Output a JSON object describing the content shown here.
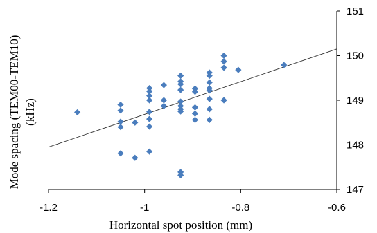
{
  "chart_data": {
    "type": "scatter",
    "xlabel": "Horizontal spot position (mm)",
    "ylabel_line1": "Mode spacing (TEM00-TEM10)",
    "ylabel_line2": "(kHz)",
    "xlim": [
      -1.2,
      -0.6
    ],
    "ylim": [
      147,
      151
    ],
    "x_ticks": [
      -1.2,
      -1,
      -0.8,
      -0.6
    ],
    "x_tick_labels": [
      "-1.2",
      "-1",
      "-0.8",
      "-0.6"
    ],
    "y_ticks": [
      147,
      148,
      149,
      150,
      151
    ],
    "y_tick_labels": [
      "147",
      "148",
      "149",
      "150",
      "151"
    ],
    "y_axis_side": "right",
    "grid": false,
    "marker_color": "#4a7dbd",
    "trendline": {
      "x": [
        -1.2,
        -0.6
      ],
      "y": [
        147.95,
        150.15
      ]
    },
    "points": [
      {
        "x": -1.14,
        "y": 148.73
      },
      {
        "x": -1.05,
        "y": 148.9
      },
      {
        "x": -1.05,
        "y": 148.77
      },
      {
        "x": -1.05,
        "y": 148.52
      },
      {
        "x": -1.05,
        "y": 148.4
      },
      {
        "x": -1.05,
        "y": 147.81
      },
      {
        "x": -1.02,
        "y": 148.5
      },
      {
        "x": -1.02,
        "y": 147.71
      },
      {
        "x": -0.99,
        "y": 149.27
      },
      {
        "x": -0.99,
        "y": 149.2
      },
      {
        "x": -0.99,
        "y": 149.1
      },
      {
        "x": -0.99,
        "y": 149.0
      },
      {
        "x": -0.99,
        "y": 148.74
      },
      {
        "x": -0.99,
        "y": 148.58
      },
      {
        "x": -0.99,
        "y": 148.41
      },
      {
        "x": -0.99,
        "y": 147.85
      },
      {
        "x": -0.96,
        "y": 149.34
      },
      {
        "x": -0.96,
        "y": 149.0
      },
      {
        "x": -0.96,
        "y": 148.87
      },
      {
        "x": -0.925,
        "y": 149.55
      },
      {
        "x": -0.925,
        "y": 149.42
      },
      {
        "x": -0.925,
        "y": 149.36
      },
      {
        "x": -0.925,
        "y": 149.23
      },
      {
        "x": -0.925,
        "y": 148.97
      },
      {
        "x": -0.925,
        "y": 148.87
      },
      {
        "x": -0.925,
        "y": 148.8
      },
      {
        "x": -0.925,
        "y": 148.75
      },
      {
        "x": -0.925,
        "y": 147.39
      },
      {
        "x": -0.925,
        "y": 147.32
      },
      {
        "x": -0.895,
        "y": 149.26
      },
      {
        "x": -0.895,
        "y": 149.19
      },
      {
        "x": -0.895,
        "y": 148.84
      },
      {
        "x": -0.895,
        "y": 148.7
      },
      {
        "x": -0.895,
        "y": 148.56
      },
      {
        "x": -0.865,
        "y": 149.62
      },
      {
        "x": -0.865,
        "y": 149.55
      },
      {
        "x": -0.865,
        "y": 149.4
      },
      {
        "x": -0.865,
        "y": 149.27
      },
      {
        "x": -0.865,
        "y": 149.22
      },
      {
        "x": -0.865,
        "y": 149.03
      },
      {
        "x": -0.865,
        "y": 148.8
      },
      {
        "x": -0.865,
        "y": 148.56
      },
      {
        "x": -0.835,
        "y": 150.0
      },
      {
        "x": -0.835,
        "y": 149.87
      },
      {
        "x": -0.835,
        "y": 149.73
      },
      {
        "x": -0.835,
        "y": 149.0
      },
      {
        "x": -0.805,
        "y": 149.68
      },
      {
        "x": -0.71,
        "y": 149.79
      }
    ]
  }
}
